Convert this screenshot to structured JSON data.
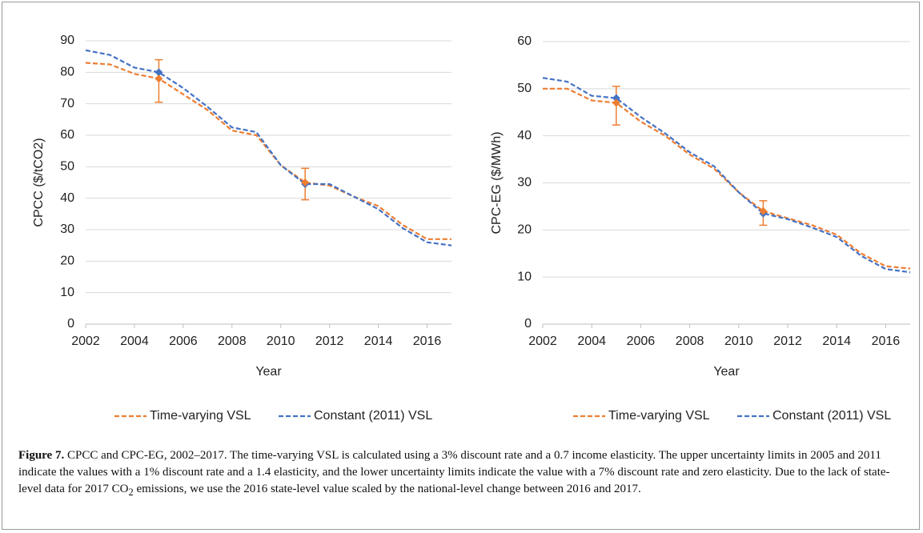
{
  "chart_data": [
    {
      "type": "line",
      "xlabel": "Year",
      "ylabel": "CPCC ($/tCO2)",
      "x": [
        2002,
        2003,
        2004,
        2005,
        2006,
        2007,
        2008,
        2009,
        2010,
        2011,
        2012,
        2013,
        2014,
        2015,
        2016,
        2017
      ],
      "series": [
        {
          "name": "Time-varying VSL",
          "color": "#ed7d31",
          "values": [
            83,
            82.5,
            79.5,
            78,
            73,
            68,
            61.5,
            60,
            50.5,
            45,
            44,
            40.5,
            37.5,
            31.5,
            27,
            27
          ]
        },
        {
          "name": "Constant (2011) VSL",
          "color": "#4472c4",
          "values": [
            87,
            85.5,
            81.5,
            80,
            75,
            69,
            62.5,
            61,
            50.5,
            44.5,
            44.5,
            40.5,
            36.5,
            30.5,
            26,
            25
          ]
        }
      ],
      "marker_x": [
        2005,
        2011
      ],
      "error_bars": [
        {
          "x": 2005,
          "upper": 84,
          "lower": 70.5
        },
        {
          "x": 2011,
          "upper": 49.5,
          "lower": 39.5
        }
      ],
      "xlim": [
        2002,
        2017
      ],
      "xticks": [
        2002,
        2004,
        2006,
        2008,
        2010,
        2012,
        2014,
        2016
      ],
      "ylim": [
        0,
        90
      ],
      "yticks": [
        0,
        10,
        20,
        30,
        40,
        50,
        60,
        70,
        80,
        90
      ],
      "grid": true
    },
    {
      "type": "line",
      "xlabel": "Year",
      "ylabel": "CPC-EG ($/MWh)",
      "x": [
        2002,
        2003,
        2004,
        2005,
        2006,
        2007,
        2008,
        2009,
        2010,
        2011,
        2012,
        2013,
        2014,
        2015,
        2016,
        2017
      ],
      "series": [
        {
          "name": "Time-varying VSL",
          "color": "#ed7d31",
          "values": [
            50,
            50,
            47.5,
            47,
            43,
            40,
            36,
            33,
            28,
            24,
            22.5,
            21,
            19,
            15,
            12.3,
            11.8
          ]
        },
        {
          "name": "Constant (2011) VSL",
          "color": "#4472c4",
          "values": [
            52.3,
            51.5,
            48.5,
            48,
            44,
            40.5,
            36.5,
            33.5,
            28,
            23.5,
            22.3,
            20.5,
            18.5,
            14.5,
            11.7,
            11
          ]
        }
      ],
      "marker_x": [
        2005,
        2011
      ],
      "error_bars": [
        {
          "x": 2005,
          "upper": 50.5,
          "lower": 42.3
        },
        {
          "x": 2011,
          "upper": 26.2,
          "lower": 21
        }
      ],
      "xlim": [
        2002,
        2017
      ],
      "xticks": [
        2002,
        2004,
        2006,
        2008,
        2010,
        2012,
        2014,
        2016
      ],
      "ylim": [
        0,
        60
      ],
      "yticks": [
        0,
        10,
        20,
        30,
        40,
        50,
        60
      ],
      "grid": true
    }
  ],
  "caption": {
    "label": "Figure 7.",
    "text": " CPCC and CPC-EG, 2002–2017. The time-varying VSL is calculated using a 3% discount rate and a 0.7 income elasticity. The upper uncertainty limits in 2005 and 2011 indicate the values with a 1% discount rate and a 1.4 elasticity, and the lower uncertainty limits indicate the value with a 7% discount rate and zero elasticity. Due to the lack of state-level data for 2017 CO",
    "subscript": "2",
    "text_end": " emissions, we use the 2016 state-level value scaled by the national-level change between 2016 and 2017."
  }
}
